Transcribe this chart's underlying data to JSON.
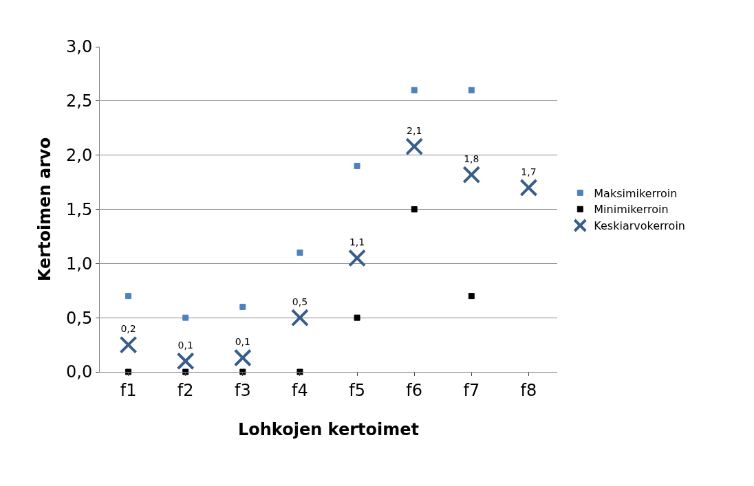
{
  "chart_data": {
    "type": "scatter",
    "xlabel": "Lohkojen kertoimet",
    "ylabel": "Kertoimen arvo",
    "categories": [
      "f1",
      "f2",
      "f3",
      "f4",
      "f5",
      "f6",
      "f7",
      "f8"
    ],
    "series": [
      {
        "name": "Maksimikerroin",
        "color": "#4f81bd",
        "marker": "square",
        "values": [
          0.7,
          0.5,
          0.6,
          1.1,
          1.9,
          2.6,
          2.6,
          null
        ]
      },
      {
        "name": "Minimikerroin",
        "color": "#000000",
        "marker": "square",
        "values": [
          0,
          0,
          0,
          0,
          0.5,
          1.5,
          0.7,
          null
        ]
      },
      {
        "name": "Keskiarvokerroin",
        "color": "#385d8a",
        "marker": "cross",
        "values": [
          0.25,
          0.1,
          0.13,
          0.5,
          1.05,
          2.08,
          1.82,
          1.7
        ],
        "value_labels": [
          "0,2",
          "0,1",
          "0,1",
          "0,5",
          "1,1",
          "2,1",
          "1,8",
          "1,7"
        ]
      }
    ],
    "ylim": [
      0,
      3
    ],
    "yticks": [
      {
        "value": 0,
        "label": "0,0"
      },
      {
        "value": 0.5,
        "label": "0,5"
      },
      {
        "value": 1,
        "label": "1,0"
      },
      {
        "value": 1.5,
        "label": "1,5"
      },
      {
        "value": 2,
        "label": "2,0"
      },
      {
        "value": 2.5,
        "label": "2,5"
      },
      {
        "value": 3,
        "label": "3,0"
      }
    ],
    "grid": "y",
    "legend": "right"
  }
}
